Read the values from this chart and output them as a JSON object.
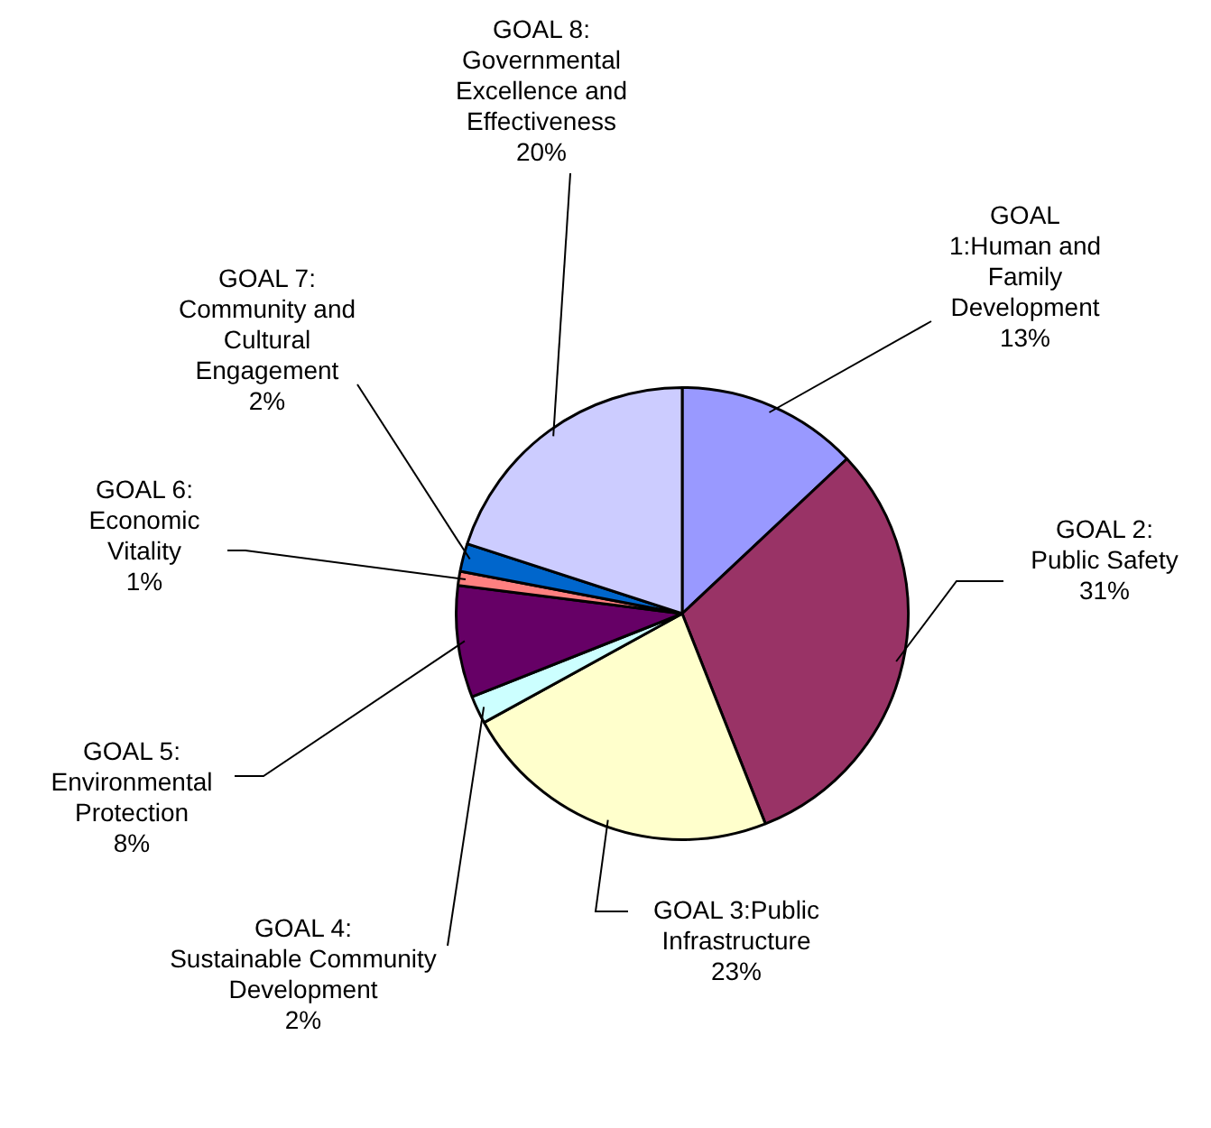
{
  "chart_data": {
    "type": "pie",
    "categories": [
      "GOAL 1:Human and Family Development",
      "GOAL 2: Public Safety",
      "GOAL 3:Public Infrastructure",
      "GOAL 4: Sustainable Community Development",
      "GOAL 5: Environmental Protection",
      "GOAL 6: Economic Vitality",
      "GOAL 7: Community and Cultural Engagement",
      "GOAL 8: Governmental Excellence and Effectiveness"
    ],
    "values": [
      13,
      31,
      23,
      2,
      8,
      1,
      2,
      20
    ],
    "colors": [
      "#9999ff",
      "#993366",
      "#ffffcc",
      "#ccffff",
      "#660066",
      "#ff8080",
      "#0066cc",
      "#ccccff"
    ],
    "value_labels": [
      "13%",
      "31%",
      "23%",
      "2%",
      "8%",
      "1%",
      "2%",
      "20%"
    ],
    "legend": false
  }
}
